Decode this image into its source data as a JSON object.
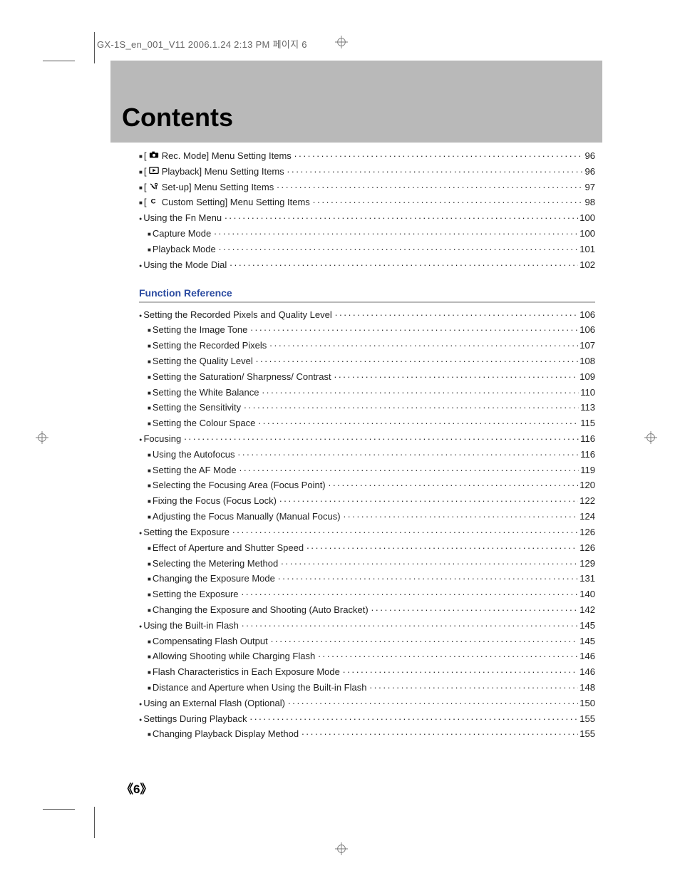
{
  "file_header": "GX-1S_en_001_V11  2006.1.24 2:13 PM  페이지 6",
  "title": "Contents",
  "page_number_display": "《6》",
  "colors": {
    "banner_bg": "#b9b9b9",
    "section_head": "#2a4aa0",
    "text": "#222222",
    "crop_mark": "#555555"
  },
  "top_list": [
    {
      "bullet": "square",
      "icon": "camera",
      "label": "[      Rec. Mode] Menu Setting Items",
      "page": "96"
    },
    {
      "bullet": "square",
      "icon": "play",
      "label": "[      Playback] Menu Setting Items",
      "page": "96"
    },
    {
      "bullet": "square",
      "icon": "tools",
      "label": "[      Set-up] Menu Setting Items",
      "page": "97"
    },
    {
      "bullet": "square",
      "icon": "c",
      "label": "[      Custom Setting] Menu Setting Items",
      "page": "98"
    },
    {
      "bullet": "circle",
      "label": "Using the Fn Menu",
      "page": "100"
    },
    {
      "bullet": "square",
      "indent": 1,
      "label": "Capture Mode",
      "page": "100"
    },
    {
      "bullet": "square",
      "indent": 1,
      "label": "Playback Mode",
      "page": "101"
    },
    {
      "bullet": "circle",
      "label": "Using the Mode Dial",
      "page": "102"
    }
  ],
  "section_heading": "Function Reference",
  "section_list": [
    {
      "bullet": "circle",
      "label": "Setting the Recorded Pixels and Quality Level",
      "page": "106"
    },
    {
      "bullet": "square",
      "indent": 1,
      "label": "Setting the Image Tone",
      "page": "106"
    },
    {
      "bullet": "square",
      "indent": 1,
      "label": "Setting the Recorded Pixels",
      "page": "107"
    },
    {
      "bullet": "square",
      "indent": 1,
      "label": "Setting the Quality Level",
      "page": "108"
    },
    {
      "bullet": "square",
      "indent": 1,
      "label": "Setting the Saturation/ Sharpness/ Contrast",
      "page": "109"
    },
    {
      "bullet": "square",
      "indent": 1,
      "label": "Setting the White Balance",
      "page": "110"
    },
    {
      "bullet": "square",
      "indent": 1,
      "label": "Setting the Sensitivity",
      "page": "113"
    },
    {
      "bullet": "square",
      "indent": 1,
      "label": "Setting the Colour Space",
      "page": "115"
    },
    {
      "bullet": "circle",
      "label": "Focusing",
      "page": "116"
    },
    {
      "bullet": "square",
      "indent": 1,
      "label": "Using the Autofocus",
      "page": "116"
    },
    {
      "bullet": "square",
      "indent": 1,
      "label": "Setting the AF Mode",
      "page": "119"
    },
    {
      "bullet": "square",
      "indent": 1,
      "label": "Selecting the Focusing Area (Focus Point)",
      "page": "120"
    },
    {
      "bullet": "square",
      "indent": 1,
      "label": "Fixing the Focus (Focus Lock)",
      "page": "122"
    },
    {
      "bullet": "square",
      "indent": 1,
      "label": "Adjusting the Focus Manually (Manual Focus)",
      "page": "124"
    },
    {
      "bullet": "circle",
      "label": "Setting the Exposure",
      "page": "126"
    },
    {
      "bullet": "square",
      "indent": 1,
      "label": "Effect of Aperture and Shutter Speed",
      "page": "126"
    },
    {
      "bullet": "square",
      "indent": 1,
      "label": "Selecting the Metering Method",
      "page": "129"
    },
    {
      "bullet": "square",
      "indent": 1,
      "label": "Changing the Exposure Mode",
      "page": "131"
    },
    {
      "bullet": "square",
      "indent": 1,
      "label": "Setting the Exposure",
      "page": "140"
    },
    {
      "bullet": "square",
      "indent": 1,
      "label": "Changing the Exposure and Shooting (Auto Bracket)",
      "page": "142"
    },
    {
      "bullet": "circle",
      "label": "Using the Built-in Flash",
      "page": "145"
    },
    {
      "bullet": "square",
      "indent": 1,
      "label": "Compensating Flash Output",
      "page": "145"
    },
    {
      "bullet": "square",
      "indent": 1,
      "label": "Allowing Shooting while Charging Flash",
      "page": "146"
    },
    {
      "bullet": "square",
      "indent": 1,
      "label": "Flash Characteristics in Each Exposure Mode",
      "page": "146"
    },
    {
      "bullet": "square",
      "indent": 1,
      "label": "Distance and Aperture when Using the Built-in Flash",
      "page": "148"
    },
    {
      "bullet": "circle",
      "label": "Using an External Flash (Optional)",
      "page": "150"
    },
    {
      "bullet": "circle",
      "label": "Settings During Playback",
      "page": "155"
    },
    {
      "bullet": "square",
      "indent": 1,
      "label": "Changing Playback Display Method",
      "page": "155"
    }
  ]
}
